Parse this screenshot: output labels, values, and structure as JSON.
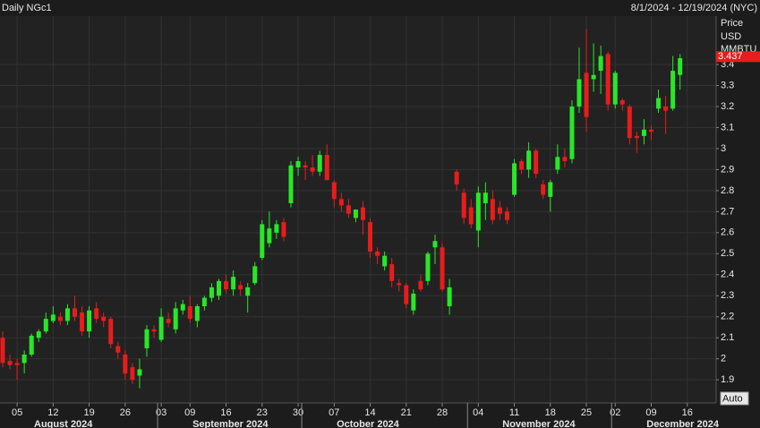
{
  "chart_data": {
    "type": "candlestick",
    "title": "Daily NGc1",
    "date_range": "8/1/2024 - 12/19/2024 (NYC)",
    "y_axis_label": [
      "Price",
      "USD",
      "MMBTU"
    ],
    "categories": [
      null,
      null,
      "05",
      null,
      null,
      null,
      null,
      "12",
      null,
      null,
      null,
      null,
      "19",
      null,
      null,
      null,
      null,
      "26",
      null,
      null,
      null,
      null,
      "03",
      null,
      null,
      null,
      "09",
      null,
      null,
      null,
      null,
      "16",
      null,
      null,
      null,
      null,
      "23",
      null,
      null,
      null,
      null,
      "30",
      null,
      null,
      null,
      null,
      "07",
      null,
      null,
      null,
      null,
      "14",
      null,
      null,
      null,
      null,
      "21",
      null,
      null,
      null,
      null,
      "28",
      null,
      null,
      null,
      null,
      "04",
      null,
      null,
      null,
      null,
      "11",
      null,
      null,
      null,
      null,
      "18",
      null,
      null,
      null,
      null,
      "25",
      null,
      null,
      null,
      "02",
      null,
      null,
      null,
      null,
      "09",
      null,
      null,
      null,
      null,
      "16"
    ],
    "months": [
      {
        "label": "August 2024",
        "count": 22
      },
      {
        "label": "September 2024",
        "count": 20
      },
      {
        "label": "October 2024",
        "count": 23
      },
      {
        "label": "November 2024",
        "count": 20
      },
      {
        "label": "December 2024",
        "count": 11
      }
    ],
    "open": [
      2.1,
      1.99,
      1.98,
      1.98,
      2.02,
      2.1,
      2.13,
      2.18,
      2.2,
      2.18,
      2.24,
      2.22,
      2.13,
      2.24,
      2.2,
      2.19,
      2.06,
      2.02,
      1.96,
      1.92,
      2.05,
      2.14,
      2.09,
      2.19,
      2.14,
      2.23,
      2.25,
      2.18,
      2.25,
      2.29,
      2.3,
      2.37,
      2.33,
      2.35,
      2.3,
      2.36,
      2.48,
      2.55,
      2.6,
      2.65,
      2.74,
      2.91,
      2.92,
      2.91,
      2.89,
      2.97,
      2.84,
      2.76,
      2.73,
      2.67,
      2.72,
      2.65,
      2.51,
      2.44,
      2.45,
      2.36,
      2.35,
      2.23,
      2.37,
      2.37,
      2.53,
      2.53,
      2.25,
      2.89,
      2.79,
      2.72,
      2.61,
      2.74,
      2.76,
      2.72,
      2.7,
      2.78,
      2.94,
      2.9,
      2.99,
      2.83,
      2.77,
      2.9,
      2.96,
      2.95,
      3.2,
      3.36,
      3.33,
      3.37,
      3.45,
      3.21,
      3.23,
      3.2,
      3.06,
      3.06,
      3.09,
      3.19,
      3.2,
      3.19,
      3.35,
      null
    ],
    "high": [
      2.13,
      2.02,
      2.0,
      2.04,
      2.12,
      2.14,
      2.22,
      2.25,
      2.22,
      2.26,
      2.3,
      2.25,
      2.25,
      2.27,
      2.22,
      2.2,
      2.08,
      2.04,
      1.98,
      2.0,
      2.16,
      2.16,
      2.24,
      2.22,
      2.27,
      2.28,
      2.3,
      2.26,
      2.3,
      2.36,
      2.38,
      2.4,
      2.42,
      2.37,
      2.36,
      2.46,
      2.66,
      2.7,
      2.66,
      2.67,
      2.94,
      2.96,
      2.94,
      2.97,
      2.99,
      3.02,
      2.85,
      2.79,
      2.76,
      2.71,
      2.75,
      2.67,
      2.53,
      2.51,
      2.48,
      2.38,
      2.36,
      2.33,
      2.4,
      2.51,
      2.59,
      2.55,
      2.38,
      2.9,
      2.81,
      2.76,
      2.82,
      2.84,
      2.8,
      2.75,
      2.72,
      2.95,
      2.95,
      3.03,
      3.0,
      2.85,
      2.85,
      3.02,
      3.0,
      3.23,
      3.48,
      3.57,
      3.5,
      3.49,
      3.46,
      3.37,
      3.24,
      3.21,
      3.08,
      3.14,
      3.11,
      3.28,
      3.25,
      3.44,
      3.45,
      null
    ],
    "low": [
      1.96,
      1.95,
      1.9,
      1.93,
      2.01,
      2.08,
      2.12,
      2.17,
      2.16,
      2.16,
      2.18,
      2.11,
      2.1,
      2.17,
      2.15,
      2.05,
      2.0,
      1.9,
      1.88,
      1.86,
      2.01,
      2.1,
      2.08,
      2.15,
      2.12,
      2.21,
      2.17,
      2.15,
      2.23,
      2.27,
      2.28,
      2.31,
      2.3,
      2.3,
      2.22,
      2.35,
      2.47,
      2.53,
      2.57,
      2.56,
      2.72,
      2.87,
      2.85,
      2.87,
      2.87,
      2.85,
      2.72,
      2.7,
      2.67,
      2.65,
      2.59,
      2.48,
      2.45,
      2.42,
      2.34,
      2.32,
      2.24,
      2.21,
      2.32,
      2.35,
      2.45,
      2.32,
      2.21,
      2.8,
      2.64,
      2.62,
      2.53,
      2.66,
      2.64,
      2.66,
      2.64,
      2.77,
      2.88,
      2.86,
      2.86,
      2.76,
      2.7,
      2.88,
      2.91,
      2.93,
      3.17,
      3.08,
      3.27,
      3.26,
      3.18,
      3.19,
      3.18,
      3.02,
      2.98,
      3.02,
      3.04,
      3.17,
      3.07,
      3.18,
      3.28,
      null
    ],
    "close": [
      1.98,
      1.97,
      1.97,
      2.02,
      2.11,
      2.13,
      2.19,
      2.21,
      2.18,
      2.24,
      2.2,
      2.13,
      2.23,
      2.19,
      2.18,
      2.07,
      2.03,
      1.93,
      1.9,
      1.95,
      2.14,
      2.13,
      2.2,
      2.17,
      2.24,
      2.26,
      2.19,
      2.25,
      2.29,
      2.34,
      2.37,
      2.33,
      2.39,
      2.33,
      2.34,
      2.44,
      2.64,
      2.62,
      2.64,
      2.58,
      2.92,
      2.94,
      2.91,
      2.89,
      2.97,
      2.85,
      2.76,
      2.73,
      2.69,
      2.71,
      2.66,
      2.51,
      2.49,
      2.49,
      2.37,
      2.35,
      2.26,
      2.31,
      2.33,
      2.5,
      2.56,
      2.33,
      2.34,
      2.83,
      2.67,
      2.64,
      2.79,
      2.79,
      2.66,
      2.69,
      2.66,
      2.93,
      2.9,
      2.99,
      2.88,
      2.78,
      2.84,
      2.96,
      2.94,
      3.2,
      3.33,
      3.15,
      3.35,
      3.44,
      3.21,
      3.36,
      3.21,
      3.05,
      3.05,
      3.09,
      3.08,
      3.24,
      3.18,
      3.37,
      3.43,
      null
    ],
    "up_color": "#27e827",
    "down_color": "#e81c1c",
    "ylim": [
      1.79,
      3.63
    ],
    "yticks": [
      1.9,
      2,
      2.1,
      2.2,
      2.3,
      2.4,
      2.5,
      2.6,
      2.7,
      2.8,
      2.9,
      3,
      3.1,
      3.2,
      3.3,
      3.4
    ],
    "grid": true,
    "last_price": 3.437,
    "button": "Auto"
  }
}
